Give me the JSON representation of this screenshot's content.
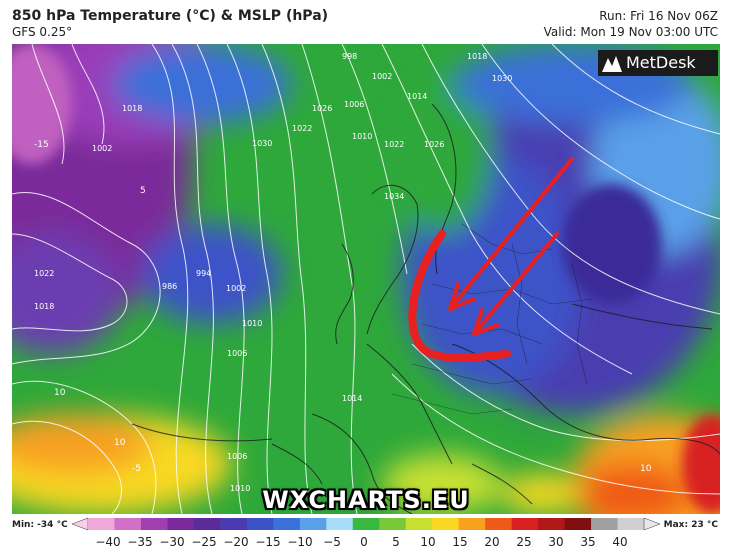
{
  "header": {
    "title": "850 hPa Temperature (°C) & MSLP (hPa)",
    "model": "GFS 0.25°",
    "run": "Run: Fri 16 Nov 06Z",
    "valid": "Valid: Mon 19 Nov 03:00 UTC"
  },
  "logo": {
    "text": "MetDesk"
  },
  "watermark": "WXCHARTS.EU",
  "colorbar": {
    "min_label": "Min: -34 °C",
    "max_label": "Max: 23 °C",
    "ticks": [
      "−40",
      "−35",
      "−30",
      "−25",
      "−20",
      "−15",
      "−10",
      "−5",
      "0",
      "5",
      "10",
      "15",
      "20",
      "25",
      "30",
      "35",
      "40"
    ],
    "colors": [
      "#f0a8d8",
      "#d070c8",
      "#a040b0",
      "#7a2a9a",
      "#5a2c9a",
      "#4a3cb0",
      "#3e52c8",
      "#3a70d8",
      "#5aa0e8",
      "#a8dcf8",
      "#38b840",
      "#78c838",
      "#c8e030",
      "#f8d820",
      "#f8a020",
      "#f05a18",
      "#d82020",
      "#b01818",
      "#801010",
      "#a0a0a0",
      "#d0d0d0"
    ]
  },
  "isobars": {
    "labels": [
      "998",
      "1002",
      "1006",
      "1010",
      "1014",
      "1018",
      "1022",
      "1026",
      "1030",
      "1034",
      "986",
      "994",
      "1002",
      "1006",
      "1010",
      "1018",
      "1022",
      "1002",
      "1006",
      "1010",
      "1014",
      "1018",
      "1022",
      "1026",
      "1030"
    ]
  },
  "isotherm_labels": [
    "-15",
    "10",
    "10",
    "10",
    "5",
    "-5"
  ],
  "annotations": {
    "arrows_color": "#e82020",
    "description_note": ""
  }
}
